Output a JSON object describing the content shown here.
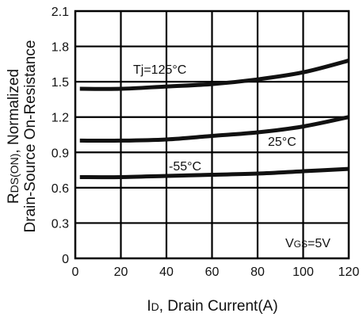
{
  "chart_data": {
    "type": "line",
    "xlabel": "ID, Drain Current(A)",
    "ylabel_line1": "RDS(ON), Normalized",
    "ylabel_line2": "Drain-Source On-Resistance",
    "xlim": [
      0,
      120
    ],
    "ylim": [
      0,
      2.1
    ],
    "x_ticks": [
      "0",
      "20",
      "40",
      "60",
      "80",
      "100",
      "120"
    ],
    "y_ticks": [
      "0",
      "0.3",
      "0.6",
      "0.9",
      "1.2",
      "1.5",
      "1.8",
      "2.1"
    ],
    "grid": true,
    "x": [
      2,
      20,
      40,
      60,
      80,
      100,
      120
    ],
    "series": [
      {
        "name": "Tj=125°C",
        "values": [
          1.44,
          1.44,
          1.46,
          1.48,
          1.52,
          1.58,
          1.68
        ]
      },
      {
        "name": "25°C",
        "values": [
          1.0,
          1.0,
          1.01,
          1.04,
          1.07,
          1.12,
          1.2
        ]
      },
      {
        "name": "-55°C",
        "values": [
          0.69,
          0.69,
          0.7,
          0.71,
          0.72,
          0.74,
          0.76
        ]
      }
    ],
    "annotations": [
      "Tj=125°C",
      "25°C",
      "-55°C",
      "VGS=5V"
    ]
  }
}
